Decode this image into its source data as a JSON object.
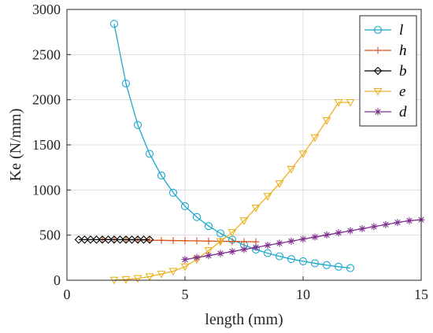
{
  "chart_data": {
    "type": "line",
    "xlabel": "length (mm)",
    "ylabel": "Ke (N/mm)",
    "xlim": [
      0,
      15
    ],
    "ylim": [
      0,
      3000
    ],
    "xticks": [
      "0",
      "5",
      "10",
      "15"
    ],
    "yticks": [
      "0",
      "500",
      "1000",
      "1500",
      "2000",
      "2500",
      "3000"
    ],
    "grid": true,
    "legend_position": "top-right",
    "series": [
      {
        "name": "l",
        "color": "#1aa7cd",
        "marker": "circle",
        "x": [
          2,
          2.5,
          3,
          3.5,
          4,
          4.5,
          5,
          5.5,
          6,
          6.5,
          7,
          7.5,
          8,
          8.5,
          9,
          9.5,
          10,
          10.5,
          11,
          11.5,
          12
        ],
        "y": [
          2840,
          2180,
          1720,
          1400,
          1160,
          970,
          820,
          700,
          600,
          520,
          450,
          390,
          340,
          300,
          265,
          235,
          210,
          188,
          168,
          150,
          135
        ]
      },
      {
        "name": "h",
        "color": "#d95319",
        "marker": "plus",
        "x": [
          1.5,
          2,
          2.5,
          3,
          3.5,
          4,
          4.5,
          5,
          5.5,
          6,
          6.5,
          7,
          7.5,
          8
        ],
        "y": [
          452,
          450,
          448,
          446,
          444,
          442,
          440,
          438,
          436,
          434,
          432,
          430,
          428,
          426
        ]
      },
      {
        "name": "b",
        "color": "#000000",
        "marker": "diamond",
        "x": [
          0.5,
          0.75,
          1,
          1.25,
          1.5,
          1.75,
          2,
          2.25,
          2.5,
          2.75,
          3,
          3.25,
          3.5
        ],
        "y": [
          450,
          450,
          450,
          450,
          450,
          450,
          450,
          450,
          450,
          450,
          450,
          450,
          450
        ]
      },
      {
        "name": "e",
        "color": "#edb120",
        "marker": "triangle-down",
        "x": [
          2,
          2.5,
          3,
          3.5,
          4,
          4.5,
          5,
          5.5,
          6,
          6.5,
          7,
          7.5,
          8,
          8.5,
          9,
          9.5,
          10,
          10.5,
          11,
          11.5,
          12
        ],
        "y": [
          2,
          8,
          20,
          40,
          70,
          100,
          150,
          230,
          330,
          430,
          530,
          660,
          800,
          930,
          1070,
          1230,
          1400,
          1580,
          1770,
          1970,
          1970
        ]
      },
      {
        "name": "d",
        "color": "#7e2f8e",
        "marker": "star",
        "x": [
          5,
          5.5,
          6,
          6.5,
          7,
          7.5,
          8,
          8.5,
          9,
          9.5,
          10,
          10.5,
          11,
          11.5,
          12,
          12.5,
          13,
          13.5,
          14,
          14.5,
          15
        ],
        "y": [
          230,
          252,
          274,
          296,
          318,
          341,
          364,
          387,
          410,
          433,
          456,
          479,
          502,
          525,
          548,
          571,
          594,
          617,
          640,
          660,
          670
        ]
      }
    ]
  }
}
